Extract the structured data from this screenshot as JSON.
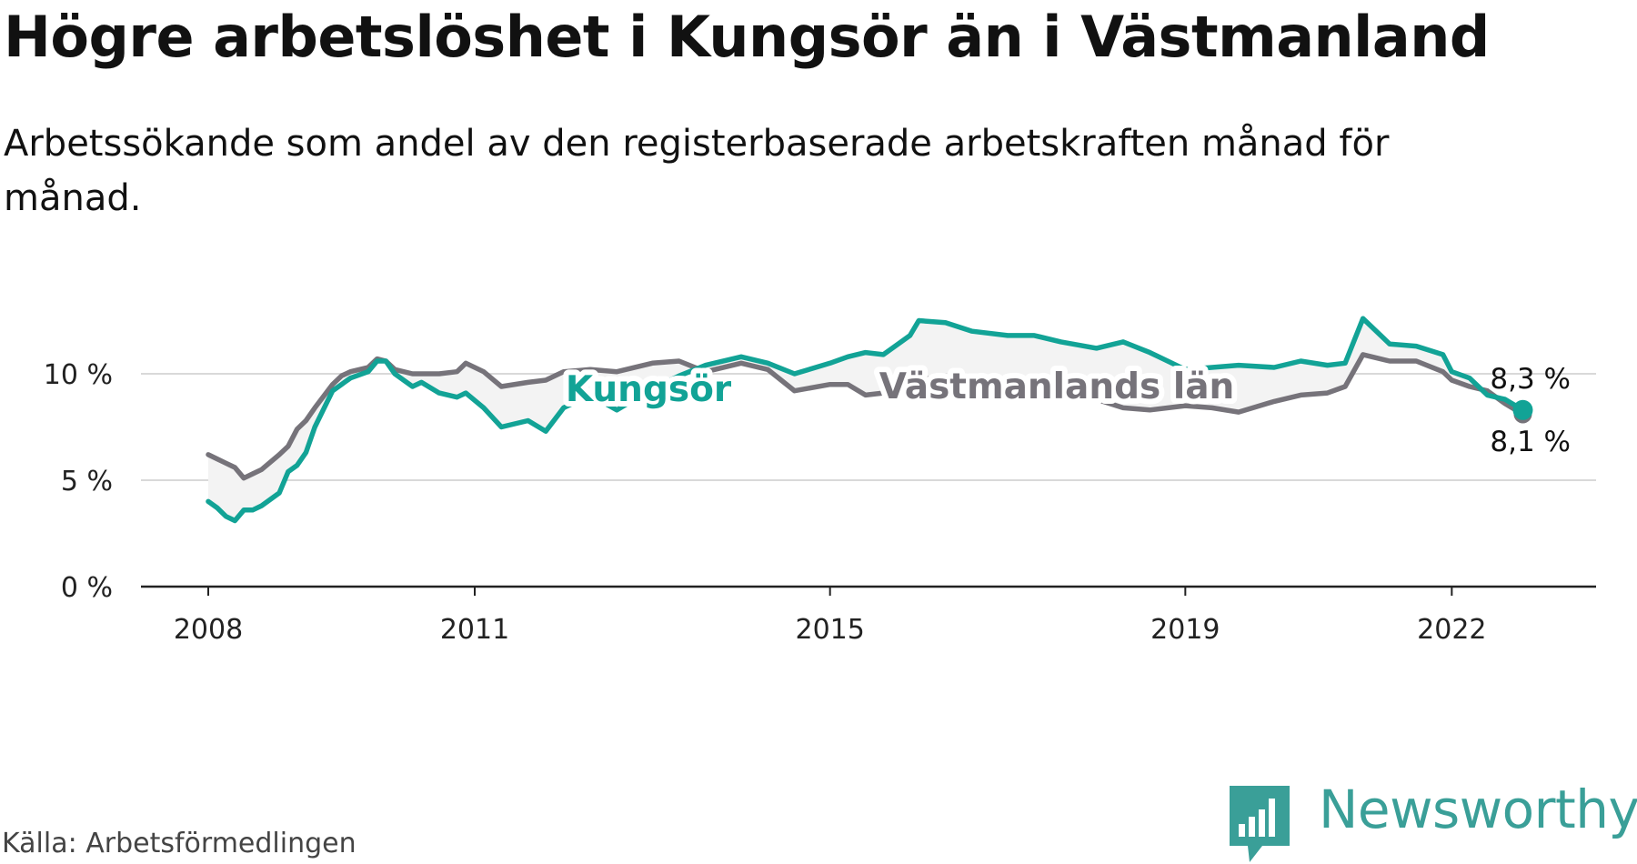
{
  "header": {
    "title": "Högre arbetslöshet i Kungsör än i Västmanland",
    "subtitle": "Arbetssökande som andel av den registerbaserade arbetskraften månad för månad."
  },
  "footer": {
    "source": "Källa: Arbetsförmedlingen",
    "brand": "Newsworthy"
  },
  "colors": {
    "kungsor": "#12a396",
    "vastmanland": "#76737a",
    "grid": "#d9d9d9",
    "axis": "#222222",
    "band": "#f3f3f3"
  },
  "chart_data": {
    "type": "line",
    "title": "Högre arbetslöshet i Kungsör än i Västmanland",
    "xlabel": "",
    "ylabel": "",
    "ylim": [
      0,
      12
    ],
    "xlim": [
      2007.25,
      2023.6
    ],
    "y_ticks": [
      0,
      5,
      10
    ],
    "y_tick_labels": [
      "0 %",
      "5 %",
      "10 %"
    ],
    "x_ticks": [
      2008,
      2011,
      2015,
      2019,
      2022
    ],
    "x_tick_labels": [
      "2008",
      "2011",
      "2015",
      "2019",
      "2022"
    ],
    "grid": true,
    "x": [
      2008.0,
      2008.1,
      2008.2,
      2008.3,
      2008.4,
      2008.5,
      2008.6,
      2008.8,
      2008.9,
      2009.0,
      2009.1,
      2009.2,
      2009.4,
      2009.5,
      2009.6,
      2009.8,
      2009.9,
      2010.0,
      2010.1,
      2010.3,
      2010.4,
      2010.6,
      2010.8,
      2010.9,
      2011.1,
      2011.3,
      2011.6,
      2011.8,
      2012.0,
      2012.3,
      2012.6,
      2013.0,
      2013.3,
      2013.6,
      2014.0,
      2014.3,
      2014.6,
      2015.0,
      2015.2,
      2015.4,
      2015.6,
      2015.9,
      2016.0,
      2016.3,
      2016.6,
      2017.0,
      2017.3,
      2017.6,
      2018.0,
      2018.3,
      2018.6,
      2019.0,
      2019.3,
      2019.6,
      2020.0,
      2020.3,
      2020.6,
      2020.8,
      2021.0,
      2021.3,
      2021.6,
      2021.9,
      2022.0,
      2022.2,
      2022.4,
      2022.6,
      2022.8
    ],
    "series": [
      {
        "name": "Kungsör",
        "label": "Kungsör",
        "end_label": "8,3 %",
        "values": [
          4.0,
          3.7,
          3.3,
          3.1,
          3.6,
          3.6,
          3.8,
          4.4,
          5.4,
          5.7,
          6.3,
          7.5,
          9.2,
          9.5,
          9.8,
          10.1,
          10.6,
          10.6,
          10.0,
          9.4,
          9.6,
          9.1,
          8.9,
          9.1,
          8.4,
          7.5,
          7.8,
          7.3,
          8.4,
          9.0,
          8.3,
          9.3,
          9.9,
          10.4,
          10.8,
          10.5,
          10.0,
          10.5,
          10.8,
          11.0,
          10.9,
          11.8,
          12.5,
          12.4,
          12.0,
          11.8,
          11.8,
          11.5,
          11.2,
          11.5,
          11.0,
          10.2,
          10.3,
          10.4,
          10.3,
          10.6,
          10.4,
          10.5,
          12.6,
          11.4,
          11.3,
          10.9,
          10.1,
          9.8,
          9.0,
          8.8,
          8.3
        ]
      },
      {
        "name": "Västmanlands län",
        "label": "Västmanlands län",
        "end_label": "8,1 %",
        "values": [
          6.2,
          6.0,
          5.8,
          5.6,
          5.1,
          5.3,
          5.5,
          6.2,
          6.6,
          7.4,
          7.8,
          8.4,
          9.5,
          9.9,
          10.1,
          10.3,
          10.7,
          10.6,
          10.2,
          10.0,
          10.0,
          10.0,
          10.1,
          10.5,
          10.1,
          9.4,
          9.6,
          9.7,
          10.1,
          10.2,
          10.1,
          10.5,
          10.6,
          10.1,
          10.5,
          10.2,
          9.2,
          9.5,
          9.5,
          9.0,
          9.1,
          9.5,
          9.7,
          9.9,
          9.6,
          9.3,
          9.1,
          8.9,
          8.8,
          8.4,
          8.3,
          8.5,
          8.4,
          8.2,
          8.7,
          9.0,
          9.1,
          9.4,
          10.9,
          10.6,
          10.6,
          10.1,
          9.7,
          9.4,
          9.2,
          8.6,
          8.1
        ]
      }
    ],
    "annotations": [
      {
        "text": "Kungsör",
        "series": "Kungsör",
        "x": 2013.0,
        "y": 9.4
      },
      {
        "text": "Västmanlands län",
        "series": "Västmanlands län",
        "x": 2017.5,
        "y": 9.5
      }
    ]
  }
}
